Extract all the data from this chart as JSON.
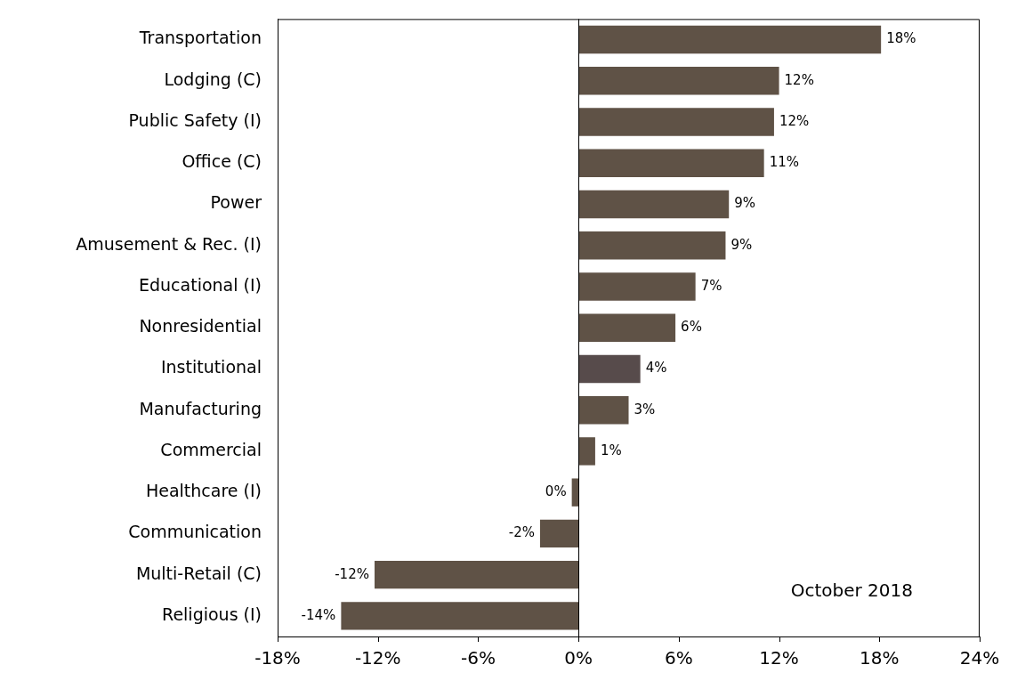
{
  "chart_data": {
    "type": "bar",
    "orientation": "horizontal",
    "categories": [
      "Transportation",
      "Lodging (C)",
      "Public Safety (I)",
      "Office (C)",
      "Power",
      "Amusement & Rec. (I)",
      "Educational (I)",
      "Nonresidential",
      "Institutional",
      "Manufacturing",
      "Commercial",
      "Healthcare (I)",
      "Communication",
      "Multi-Retail (C)",
      "Religious (I)"
    ],
    "values": [
      18.1,
      12.0,
      11.7,
      11.1,
      9.0,
      8.8,
      7.0,
      5.8,
      3.7,
      3.0,
      1.0,
      -0.4,
      -2.3,
      -12.2,
      -14.2
    ],
    "value_labels": [
      "18%",
      "12%",
      "12%",
      "11%",
      "9%",
      "9%",
      "7%",
      "6%",
      "4%",
      "3%",
      "1%",
      "0%",
      "-2%",
      "-12%",
      "-14%"
    ],
    "colors": [
      "#5f5246",
      "#5f5246",
      "#5f5246",
      "#5f5246",
      "#5f5246",
      "#5f5246",
      "#5f5246",
      "#5f5246",
      "#574b4b",
      "#5f5246",
      "#5f5246",
      "#5f5246",
      "#5f5246",
      "#5f5246",
      "#5f5246"
    ],
    "xlim": [
      -18,
      24
    ],
    "xticks": [
      {
        "value": -18,
        "label": "-18%"
      },
      {
        "value": -12,
        "label": "-12%"
      },
      {
        "value": -6,
        "label": "-6%"
      },
      {
        "value": 0,
        "label": "0%"
      },
      {
        "value": 6,
        "label": "6%"
      },
      {
        "value": 12,
        "label": "12%"
      },
      {
        "value": 18,
        "label": "18%"
      },
      {
        "value": 24,
        "label": "24%"
      }
    ],
    "grid": false,
    "legend": false,
    "ref_lines": [
      {
        "axis": "x",
        "value": 0,
        "color": "#000000"
      }
    ],
    "annotations": [
      "October 2018"
    ]
  }
}
